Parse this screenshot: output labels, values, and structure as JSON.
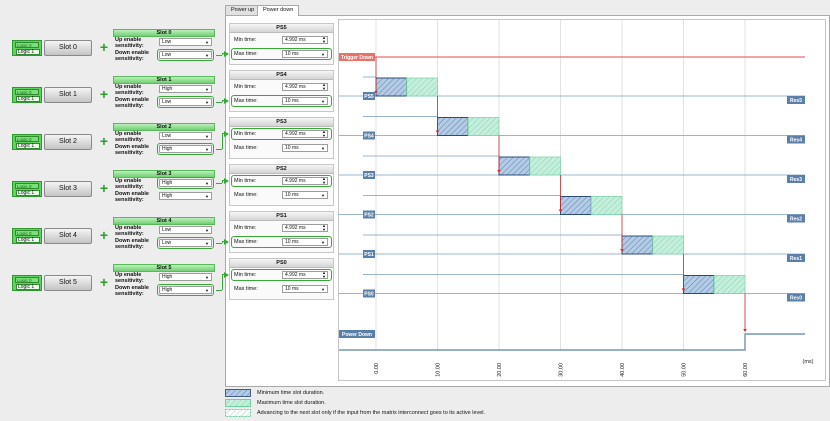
{
  "tabs": [
    {
      "label": "Power up",
      "active": false
    },
    {
      "label": "Power down",
      "active": true
    }
  ],
  "labels": {
    "up_enable": "Up enable sensitivity:",
    "down_enable": "Down enable sensitivity:",
    "min_time": "Min time:",
    "max_time": "Max time:"
  },
  "slots": [
    {
      "name": "Slot 0",
      "header": "Slot 0",
      "logic_top": "Logic 0",
      "logic_bottom": "Logic 1",
      "up": "Low",
      "down": "Low",
      "highlight": "down"
    },
    {
      "name": "Slot 1",
      "header": "Slot 1",
      "logic_top": "Logic 0",
      "logic_bottom": "Logic 1",
      "up": "High",
      "down": "Low",
      "highlight": "down"
    },
    {
      "name": "Slot 2",
      "header": "Slot 2",
      "logic_top": "Logic 0",
      "logic_bottom": "Logic 1",
      "up": "Low",
      "down": "High",
      "highlight": "down"
    },
    {
      "name": "Slot 3",
      "header": "Slot 3",
      "logic_top": "Logic 0",
      "logic_bottom": "Logic 1",
      "up": "High",
      "down": "High",
      "highlight": "up"
    },
    {
      "name": "Slot 4",
      "header": "Slot 4",
      "logic_top": "Logic 0",
      "logic_bottom": "Logic 1",
      "up": "Low",
      "down": "Low",
      "highlight": "down"
    },
    {
      "name": "Slot 5",
      "header": "Slot 5",
      "logic_top": "Logic 0",
      "logic_bottom": "Logic 1",
      "up": "High",
      "down": "High",
      "highlight": "down"
    }
  ],
  "ps_blocks": [
    {
      "title": "PS5",
      "min": "4.992 ms",
      "max": "10 ms",
      "highlight": "max"
    },
    {
      "title": "PS4",
      "min": "4.992 ms",
      "max": "10 ms",
      "highlight": "max"
    },
    {
      "title": "PS3",
      "min": "4.992 ms",
      "max": "10 ms",
      "highlight": "min"
    },
    {
      "title": "PS2",
      "min": "4.992 ms",
      "max": "10 ms",
      "highlight": "min"
    },
    {
      "title": "PS1",
      "min": "4.992 ms",
      "max": "10 ms",
      "highlight": "max"
    },
    {
      "title": "PS0",
      "min": "4.992 ms",
      "max": "10 ms",
      "highlight": "min"
    }
  ],
  "chart": {
    "x_ticks": [
      "0.00",
      "10.00",
      "20.00",
      "30.00",
      "40.00",
      "50.00",
      "60.00"
    ],
    "x_unit": "(ms)",
    "trigger_label": "Trigger Down",
    "power_down_label": "Power Down",
    "rows": [
      {
        "left": "PS5",
        "right": "Res5",
        "min_start": 0,
        "min_end": 5,
        "max_end": 10
      },
      {
        "left": "PS4",
        "right": "Res4",
        "min_start": 10,
        "min_end": 15,
        "max_end": 20
      },
      {
        "left": "PS3",
        "right": "Res3",
        "min_start": 20,
        "min_end": 25,
        "max_end": 30
      },
      {
        "left": "PS2",
        "right": "Res2",
        "min_start": 30,
        "min_end": 35,
        "max_end": 40
      },
      {
        "left": "PS1",
        "right": "Res1",
        "min_start": 40,
        "min_end": 45,
        "max_end": 50
      },
      {
        "left": "PS0",
        "right": "Res0",
        "min_start": 50,
        "min_end": 55,
        "max_end": 60
      }
    ],
    "power_down_at": 60,
    "colors": {
      "trigger": "#e8716b",
      "label_bg": "#5a7fa8",
      "min_fill": "#b4cbe6",
      "max_fill": "#c5efdc",
      "arrow": "#d62828"
    }
  },
  "legend": [
    {
      "type": "min",
      "text": "Minimum time slot duration."
    },
    {
      "type": "max",
      "text": "Maximum time slot duration."
    },
    {
      "type": "adv",
      "text": "Advancing to the next slot only if the input from the matrix interconnect goes to its active level."
    }
  ]
}
